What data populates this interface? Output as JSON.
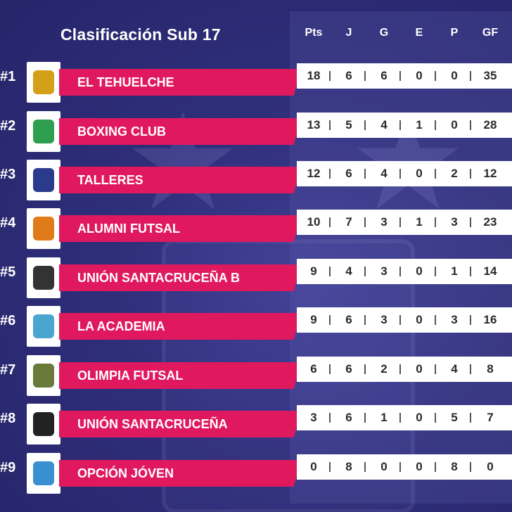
{
  "title": "Clasificación Sub 17",
  "columns": [
    "Pts",
    "J",
    "G",
    "E",
    "P",
    "GF"
  ],
  "colors": {
    "background": "#2f2e7a",
    "team_bar": "#e0195f",
    "stats_bar": "#ffffff"
  },
  "rows": [
    {
      "rank": "#1",
      "team": "EL TEHUELCHE",
      "logo": "el-tehuelche-crest-icon",
      "stats": [
        "18",
        "6",
        "6",
        "0",
        "0",
        "35"
      ]
    },
    {
      "rank": "#2",
      "team": "BOXING CLUB",
      "logo": "boxing-club-crest-icon",
      "stats": [
        "13",
        "5",
        "4",
        "1",
        "0",
        "28"
      ]
    },
    {
      "rank": "#3",
      "team": "TALLERES",
      "logo": "talleres-crest-icon",
      "stats": [
        "12",
        "6",
        "4",
        "0",
        "2",
        "12"
      ]
    },
    {
      "rank": "#4",
      "team": "ALUMNI FUTSAL",
      "logo": "alumni-futsal-crest-icon",
      "stats": [
        "10",
        "7",
        "3",
        "1",
        "3",
        "23"
      ]
    },
    {
      "rank": "#5",
      "team": "UNIÓN SANTACRUCEÑA B",
      "logo": "union-santacrucena-b-crest-icon",
      "stats": [
        "9",
        "4",
        "3",
        "0",
        "1",
        "14"
      ]
    },
    {
      "rank": "#6",
      "team": "LA ACADEMIA",
      "logo": "la-academia-crest-icon",
      "stats": [
        "9",
        "6",
        "3",
        "0",
        "3",
        "16"
      ]
    },
    {
      "rank": "#7",
      "team": "OLIMPIA FUTSAL",
      "logo": "olimpia-futsal-crest-icon",
      "stats": [
        "6",
        "6",
        "2",
        "0",
        "4",
        "8"
      ]
    },
    {
      "rank": "#8",
      "team": "UNIÓN SANTACRUCEÑA",
      "logo": "union-santacrucena-crest-icon",
      "stats": [
        "3",
        "6",
        "1",
        "0",
        "5",
        "7"
      ]
    },
    {
      "rank": "#9",
      "team": "OPCIÓN JÓVEN",
      "logo": "opcion-joven-crest-icon",
      "stats": [
        "0",
        "8",
        "0",
        "0",
        "8",
        "0"
      ]
    }
  ]
}
